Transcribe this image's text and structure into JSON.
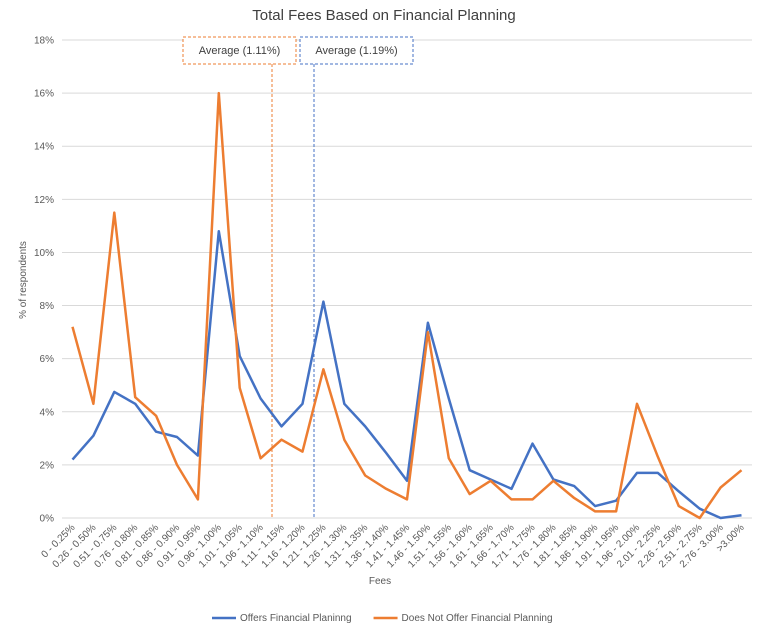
{
  "chart_data": {
    "type": "line",
    "title": "Total Fees Based on Financial Planning",
    "x_label": "Fees",
    "y_label": "% of respondents",
    "categories": [
      "0 - 0.25%",
      "0.26 - 0.50%",
      "0.51 - 0.75%",
      "0.76 - 0.80%",
      "0.81 - 0.85%",
      "0.86 - 0.90%",
      "0.91 - 0.95%",
      "0.96 - 1.00%",
      "1.01 - 1.05%",
      "1.06 - 1.10%",
      "1.11 - 1.15%",
      "1.16 - 1.20%",
      "1.21 - 1.25%",
      "1.26 - 1.30%",
      "1.31 - 1.35%",
      "1.36 - 1.40%",
      "1.41 - 1.45%",
      "1.46 - 1.50%",
      "1.51 - 1.55%",
      "1.56 - 1.60%",
      "1.61 - 1.65%",
      "1.66 - 1.70%",
      "1.71 - 1.75%",
      "1.76 - 1.80%",
      "1.81 - 1.85%",
      "1.86 - 1.90%",
      "1.91 - 1.95%",
      "1.96 - 2.00%",
      "2.01 - 2.25%",
      "2.26 - 2.50%",
      "2.51 - 2.75%",
      "2.76 - 3.00%",
      ">3.00%"
    ],
    "series": [
      {
        "name": "Offers Financial Planinng",
        "color": "#4472c4",
        "values": [
          2.2,
          3.1,
          4.75,
          4.3,
          3.25,
          3.05,
          2.35,
          10.8,
          6.1,
          4.5,
          3.45,
          4.3,
          8.15,
          4.3,
          3.45,
          2.45,
          1.4,
          7.35,
          4.5,
          1.8,
          1.45,
          1.1,
          2.8,
          1.45,
          1.2,
          0.45,
          0.65,
          1.7,
          1.7,
          1.0,
          0.35,
          0.0,
          0.1
        ]
      },
      {
        "name": "Does Not Offer Financial Planning",
        "color": "#ed7d31",
        "values": [
          7.2,
          4.3,
          11.5,
          4.55,
          3.85,
          2.0,
          0.7,
          16.0,
          4.9,
          2.25,
          2.95,
          2.5,
          5.6,
          2.95,
          1.6,
          1.1,
          0.7,
          7.0,
          2.25,
          0.9,
          1.4,
          0.7,
          0.7,
          1.4,
          0.75,
          0.25,
          0.25,
          4.3,
          2.3,
          0.45,
          0.0,
          1.15,
          1.8
        ]
      }
    ],
    "annotations": [
      {
        "text": "Average (1.11%)",
        "color": "#ed7d31"
      },
      {
        "text": "Average (1.19%)",
        "color": "#4472c4"
      }
    ],
    "ylim": [
      0,
      18
    ],
    "yticks": [
      {
        "value": 0,
        "label": "0%"
      },
      {
        "value": 2,
        "label": "2%"
      },
      {
        "value": 4,
        "label": "4%"
      },
      {
        "value": 6,
        "label": "6%"
      },
      {
        "value": 8,
        "label": "8%"
      },
      {
        "value": 10,
        "label": "10%"
      },
      {
        "value": 12,
        "label": "12%"
      },
      {
        "value": 14,
        "label": "14%"
      },
      {
        "value": 16,
        "label": "16%"
      },
      {
        "value": 18,
        "label": "18%"
      }
    ],
    "grid": true,
    "legend": "bottom"
  }
}
